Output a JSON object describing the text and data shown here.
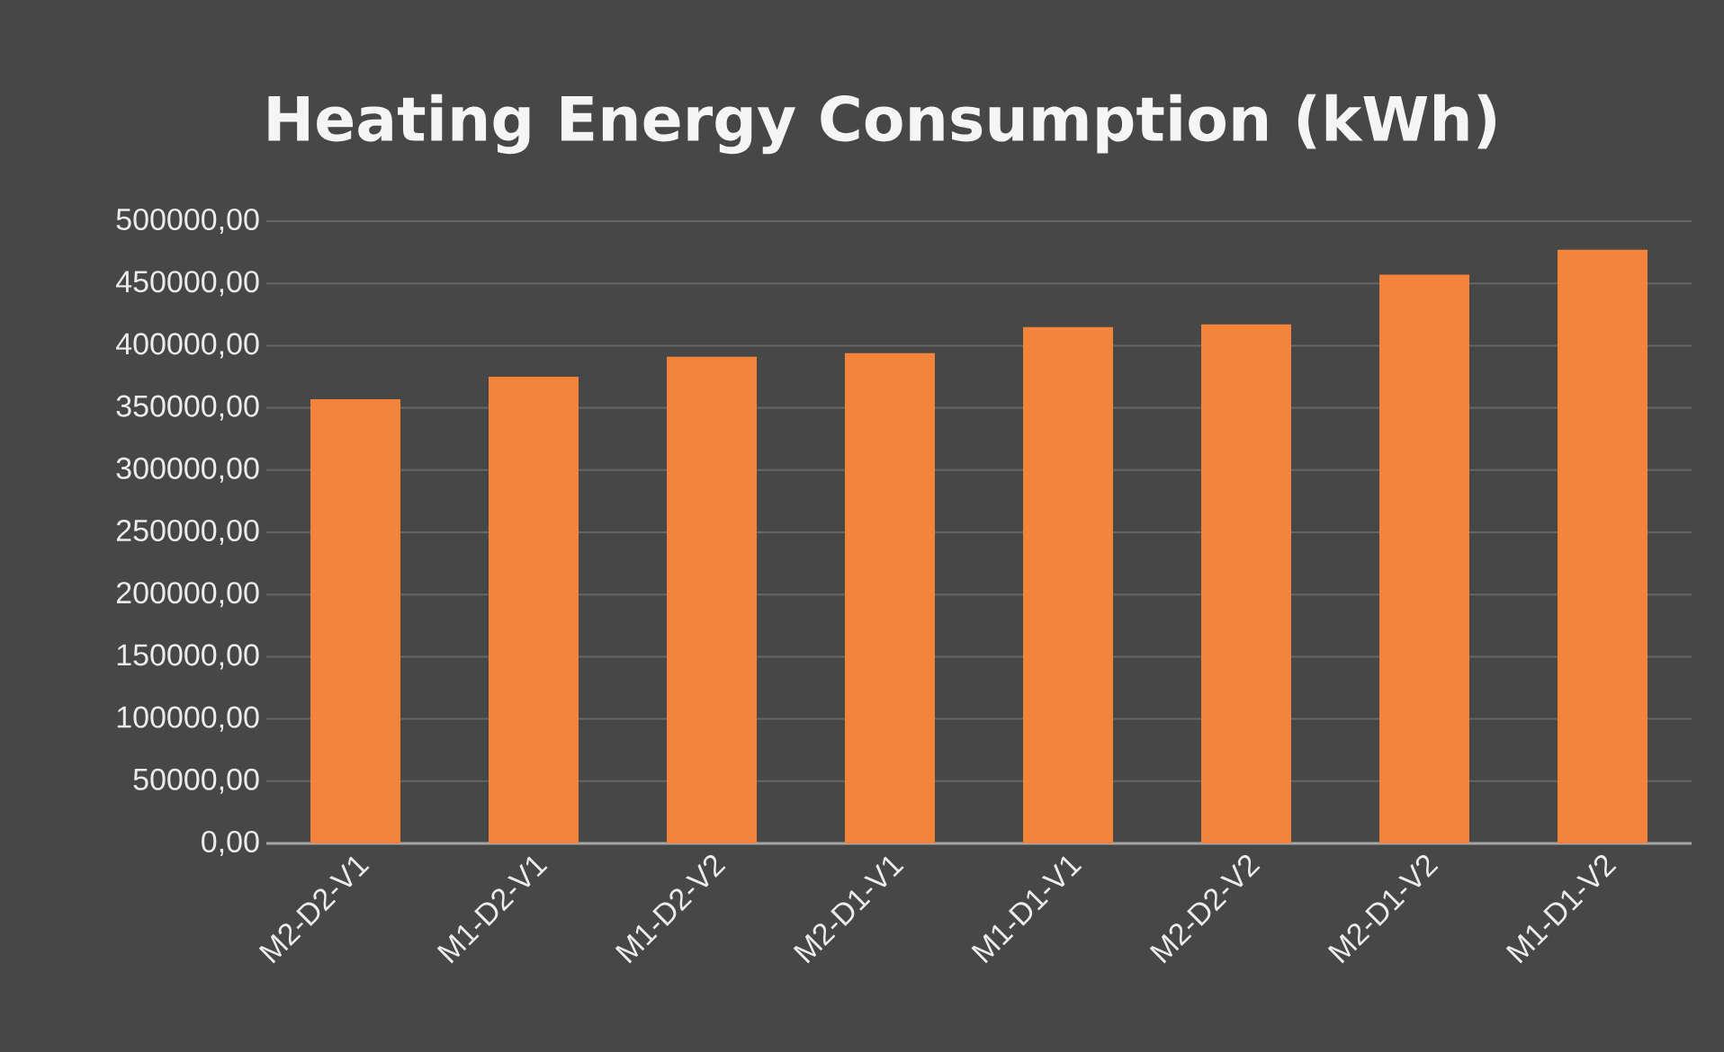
{
  "chart_data": {
    "type": "bar",
    "title": "Heating Energy Consumption (kWh)",
    "categories": [
      "M2-D2-V1",
      "M1-D2-V1",
      "M1-D2-V2",
      "M2-D1-V1",
      "M1-D1-V1",
      "M2-D2-V2",
      "M2-D1-V2",
      "M1-D1-V2"
    ],
    "values": [
      357000,
      375000,
      391000,
      394000,
      415000,
      417000,
      457000,
      477000
    ],
    "color": "#f4843c",
    "ylim": [
      0,
      500000
    ],
    "yticks": [
      {
        "value": 0,
        "label": "0,00"
      },
      {
        "value": 50000,
        "label": "50000,00"
      },
      {
        "value": 100000,
        "label": "100000,00"
      },
      {
        "value": 150000,
        "label": "150000,00"
      },
      {
        "value": 200000,
        "label": "200000,00"
      },
      {
        "value": 250000,
        "label": "250000,00"
      },
      {
        "value": 300000,
        "label": "300000,00"
      },
      {
        "value": 350000,
        "label": "350000,00"
      },
      {
        "value": 400000,
        "label": "400000,00"
      },
      {
        "value": 450000,
        "label": "450000,00"
      },
      {
        "value": 500000,
        "label": "500000,00"
      }
    ],
    "grid": "y"
  }
}
